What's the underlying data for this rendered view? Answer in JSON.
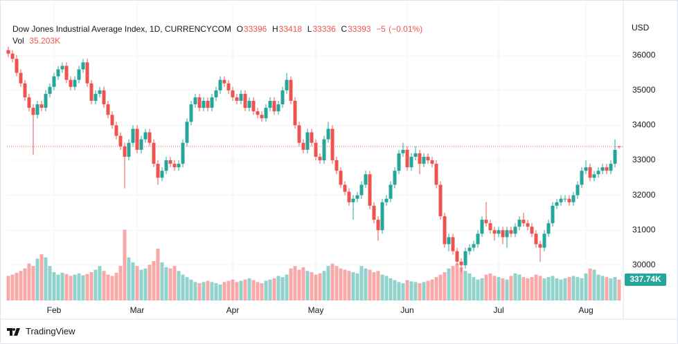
{
  "chart_data": {
    "type": "candlestick",
    "title": "Dow Jones Industrial Average Index, 1D, CURRENCYCOM",
    "ohlc_labels": [
      "O",
      "H",
      "L",
      "C"
    ],
    "change": {
      "value": -5,
      "label": "−5"
    },
    "change_pct": {
      "value": -0.01,
      "label": "(−0.01%)"
    },
    "volume_title": "Vol",
    "volume_current": "35.203K",
    "currency": "USD",
    "brand": "TradingView",
    "up_color": "#26a69a",
    "down_color": "#ef5350",
    "grid": true,
    "ylim": [
      28990,
      37090
    ],
    "yticks": [
      30000,
      31000,
      32000,
      33000,
      34000,
      35000,
      36000
    ],
    "y2lim": [
      0,
      4600000
    ],
    "categories": [
      null,
      null,
      null,
      null,
      null,
      null,
      null,
      null,
      null,
      null,
      null,
      "Feb",
      null,
      null,
      null,
      null,
      null,
      null,
      null,
      null,
      null,
      null,
      null,
      null,
      null,
      null,
      null,
      null,
      null,
      null,
      null,
      "Mar",
      null,
      null,
      null,
      null,
      null,
      null,
      null,
      null,
      null,
      null,
      null,
      null,
      null,
      null,
      null,
      null,
      null,
      null,
      null,
      null,
      null,
      null,
      "Apr",
      null,
      null,
      null,
      null,
      null,
      null,
      null,
      null,
      null,
      null,
      null,
      null,
      null,
      null,
      null,
      null,
      null,
      null,
      null,
      "May",
      null,
      null,
      null,
      null,
      null,
      null,
      null,
      null,
      null,
      null,
      null,
      null,
      null,
      null,
      null,
      null,
      null,
      null,
      null,
      null,
      null,
      "Jun",
      null,
      null,
      null,
      null,
      null,
      null,
      null,
      null,
      null,
      null,
      null,
      null,
      null,
      null,
      null,
      null,
      null,
      null,
      null,
      null,
      null,
      "Jul",
      null,
      null,
      null,
      null,
      null,
      null,
      null,
      null,
      null,
      null,
      null,
      null,
      null,
      null,
      null,
      null,
      null,
      null,
      null,
      null,
      "Aug",
      null,
      null,
      null,
      null,
      null,
      null,
      null,
      null
    ],
    "open": [
      36150,
      36050,
      35900,
      35500,
      35200,
      34800,
      34500,
      34300,
      34600,
      34500,
      34900,
      35100,
      35400,
      35600,
      35700,
      35300,
      35100,
      35300,
      35600,
      35800,
      35200,
      34700,
      34900,
      35000,
      34600,
      34300,
      34000,
      33700,
      33400,
      33100,
      33500,
      33900,
      33300,
      33600,
      33800,
      33500,
      32900,
      32500,
      32700,
      33000,
      32900,
      32800,
      32900,
      33500,
      34100,
      34600,
      34800,
      34500,
      34700,
      34500,
      34800,
      35000,
      35300,
      35200,
      35000,
      34800,
      34700,
      34900,
      34500,
      34700,
      34400,
      34300,
      34200,
      34500,
      34700,
      34400,
      34600,
      35000,
      35300,
      34700,
      34000,
      33500,
      33300,
      33800,
      33500,
      33100,
      33000,
      33600,
      33900,
      33000,
      32700,
      32300,
      32100,
      31800,
      31900,
      32000,
      32300,
      32600,
      31700,
      31300,
      31000,
      31800,
      31900,
      32300,
      32700,
      33200,
      33300,
      32800,
      33100,
      33200,
      32900,
      33100,
      33000,
      32900,
      32300,
      31400,
      30600,
      30800,
      30400,
      30100,
      30000,
      30400,
      30500,
      30600,
      30900,
      31300,
      31200,
      31000,
      30900,
      31000,
      30800,
      31000,
      30900,
      31100,
      31300,
      31200,
      31100,
      30900,
      30600,
      30500,
      30900,
      31200,
      31700,
      31800,
      31900,
      31900,
      31800,
      32000,
      32300,
      32700,
      32800,
      32500,
      32600,
      32700,
      32800,
      32700,
      32900,
      33396
    ],
    "high": [
      36250,
      36150,
      36000,
      35600,
      35300,
      34900,
      34600,
      34700,
      34700,
      35000,
      35200,
      35500,
      35700,
      35800,
      35800,
      35400,
      35400,
      35700,
      35900,
      35900,
      35300,
      35000,
      35100,
      35100,
      34700,
      34400,
      34100,
      33800,
      33500,
      33600,
      34000,
      34000,
      33700,
      33900,
      33900,
      33600,
      33000,
      32800,
      33100,
      33100,
      33000,
      33000,
      33600,
      34200,
      34700,
      34900,
      34900,
      34800,
      34800,
      34900,
      35100,
      35400,
      35400,
      35300,
      35100,
      34900,
      35000,
      35000,
      34800,
      34800,
      34500,
      34400,
      34600,
      34800,
      34800,
      34700,
      35100,
      35500,
      35400,
      34800,
      34100,
      33600,
      33900,
      33900,
      33600,
      33200,
      33700,
      34100,
      34000,
      33100,
      32800,
      32400,
      32200,
      32000,
      32100,
      32400,
      32700,
      32700,
      31800,
      31400,
      31900,
      32000,
      32400,
      32800,
      33300,
      33500,
      33400,
      33200,
      33400,
      33300,
      33200,
      33200,
      33100,
      33000,
      32400,
      31500,
      30900,
      30900,
      30500,
      30200,
      30500,
      30600,
      30700,
      31000,
      31400,
      31800,
      31300,
      31100,
      31100,
      31100,
      31100,
      31100,
      31200,
      31400,
      31500,
      31300,
      31200,
      31000,
      30700,
      31000,
      31300,
      31800,
      31900,
      32000,
      32000,
      32000,
      32100,
      32400,
      32800,
      33000,
      32900,
      32700,
      32800,
      32900,
      32900,
      33000,
      33600,
      33418
    ],
    "low": [
      35950,
      35800,
      35400,
      35100,
      34700,
      34400,
      33150,
      34200,
      34400,
      34400,
      34800,
      35000,
      35300,
      35500,
      35200,
      35000,
      35000,
      35200,
      35500,
      35100,
      34600,
      34600,
      34800,
      34500,
      34200,
      33900,
      33600,
      33300,
      32200,
      33000,
      33400,
      33200,
      33200,
      33500,
      33400,
      32800,
      32300,
      32400,
      32600,
      32800,
      32700,
      32700,
      32800,
      33400,
      34000,
      34500,
      34400,
      34400,
      34400,
      34400,
      34700,
      34900,
      35100,
      34900,
      34700,
      34600,
      34600,
      34400,
      34400,
      34300,
      34200,
      34100,
      34100,
      34400,
      34300,
      34300,
      34500,
      34900,
      34600,
      33900,
      33400,
      33200,
      33200,
      33400,
      33000,
      32900,
      32900,
      33500,
      32900,
      32600,
      32200,
      32000,
      31700,
      31300,
      31800,
      31900,
      32200,
      31600,
      31200,
      30700,
      30900,
      31700,
      31800,
      32200,
      32600,
      33100,
      32700,
      32700,
      33000,
      32600,
      32800,
      32900,
      32800,
      32200,
      31300,
      30500,
      30400,
      30300,
      30000,
      29800,
      29900,
      30300,
      30400,
      30500,
      30800,
      31100,
      30900,
      30700,
      30800,
      30600,
      30500,
      30800,
      30800,
      31000,
      31100,
      31000,
      30800,
      30500,
      30100,
      30400,
      30800,
      31100,
      31600,
      31700,
      31800,
      31700,
      31700,
      31900,
      32200,
      32600,
      32400,
      32400,
      32500,
      32600,
      32600,
      32600,
      32800,
      33336
    ],
    "close": [
      36050,
      35900,
      35500,
      35200,
      34800,
      34500,
      34300,
      34600,
      34500,
      34900,
      35100,
      35400,
      35600,
      35700,
      35300,
      35100,
      35300,
      35600,
      35800,
      35200,
      34700,
      34900,
      35000,
      34600,
      34300,
      34000,
      33700,
      33400,
      33100,
      33500,
      33900,
      33300,
      33600,
      33800,
      33500,
      32900,
      32500,
      32700,
      33000,
      32900,
      32800,
      32900,
      33500,
      34100,
      34600,
      34800,
      34500,
      34700,
      34500,
      34800,
      35000,
      35300,
      35200,
      35000,
      34800,
      34700,
      34900,
      34500,
      34700,
      34400,
      34300,
      34200,
      34500,
      34700,
      34400,
      34600,
      35000,
      35300,
      34700,
      34000,
      33500,
      33300,
      33800,
      33500,
      33100,
      33000,
      33600,
      33900,
      33000,
      32700,
      32300,
      32100,
      31800,
      31900,
      32000,
      32300,
      32600,
      31700,
      31300,
      31000,
      31800,
      31900,
      32300,
      32700,
      33200,
      33300,
      32800,
      33100,
      33200,
      32900,
      33100,
      33000,
      32900,
      32300,
      31400,
      30600,
      30800,
      30400,
      30100,
      30000,
      30400,
      30500,
      30600,
      30900,
      31300,
      31200,
      31000,
      30900,
      31000,
      30800,
      31000,
      30900,
      31100,
      31300,
      31200,
      31100,
      30900,
      30600,
      30500,
      30900,
      31200,
      31700,
      31800,
      31900,
      31900,
      31800,
      32000,
      32300,
      32700,
      32800,
      32500,
      32600,
      32700,
      32800,
      32700,
      32900,
      33300,
      33393
    ],
    "volume": [
      400000,
      420000,
      450000,
      480000,
      520000,
      600000,
      560000,
      680000,
      750000,
      700000,
      560000,
      460000,
      420000,
      450000,
      430000,
      400000,
      420000,
      440000,
      410000,
      430000,
      460000,
      500000,
      560000,
      480000,
      420000,
      400000,
      450000,
      560000,
      1150000,
      700000,
      620000,
      560000,
      500000,
      520000,
      580000,
      640000,
      840000,
      620000,
      540000,
      520000,
      560000,
      480000,
      420000,
      380000,
      340000,
      300000,
      280000,
      300000,
      320000,
      300000,
      280000,
      260000,
      300000,
      320000,
      340000,
      300000,
      320000,
      340000,
      360000,
      330000,
      300000,
      280000,
      320000,
      340000,
      360000,
      400000,
      380000,
      420000,
      520000,
      560000,
      500000,
      540000,
      480000,
      460000,
      420000,
      440000,
      480000,
      560000,
      600000,
      560000,
      520000,
      500000,
      480000,
      460000,
      440000,
      560000,
      520000,
      500000,
      460000,
      480000,
      420000,
      400000,
      360000,
      330000,
      300000,
      280000,
      330000,
      310000,
      300000,
      280000,
      300000,
      320000,
      340000,
      380000,
      420000,
      460000,
      520000,
      560000,
      600000,
      540000,
      480000,
      440000,
      380000,
      340000,
      360000,
      420000,
      440000,
      400000,
      380000,
      360000,
      340000,
      400000,
      440000,
      420000,
      380000,
      360000,
      380000,
      420000,
      400000,
      360000,
      380000,
      400000,
      360000,
      340000,
      360000,
      380000,
      400000,
      380000,
      360000,
      440000,
      520000,
      500000,
      420000,
      400000,
      380000,
      360000,
      380000,
      337740
    ],
    "volume_last_label": "337.74K"
  }
}
